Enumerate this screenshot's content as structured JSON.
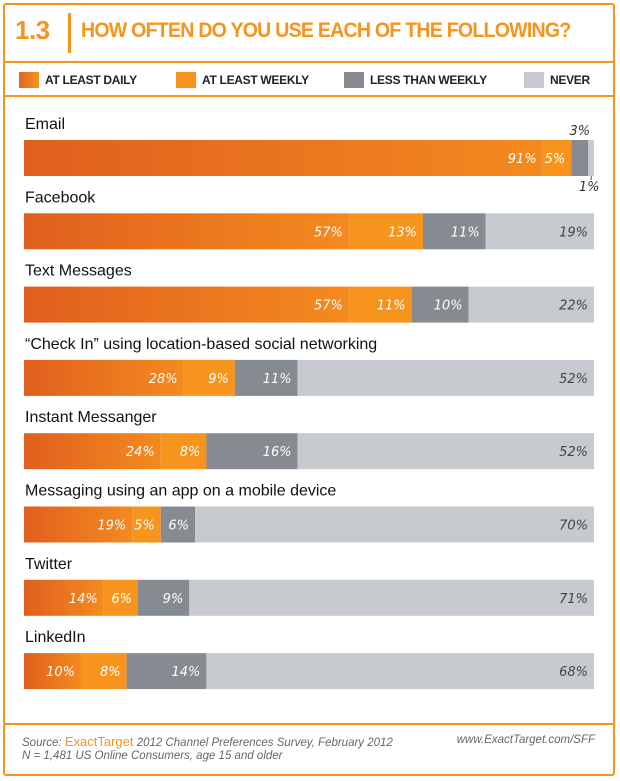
{
  "header": {
    "figure_number": "1.3",
    "title": "HOW OFTEN DO YOU USE EACH OF THE FOLLOWING?"
  },
  "legend": [
    {
      "label": "AT LEAST DAILY",
      "color": "#e8731f"
    },
    {
      "label": "AT LEAST WEEKLY",
      "color": "#f7941d"
    },
    {
      "label": "LESS THAN WEEKLY",
      "color": "#858b91"
    },
    {
      "label": "NEVER",
      "color": "#c7cbcf"
    }
  ],
  "chart_data": {
    "type": "bar",
    "orientation": "horizontal",
    "stacked": true,
    "unit": "%",
    "categories": [
      "Email",
      "Facebook",
      "Text Messages",
      "“Check In” using location-based social networking",
      "Instant Messanger",
      "Messaging using an app on a mobile device",
      "Twitter",
      "LinkedIn"
    ],
    "series": [
      {
        "name": "AT LEAST DAILY",
        "values": [
          91,
          57,
          57,
          28,
          24,
          19,
          14,
          10
        ]
      },
      {
        "name": "AT LEAST WEEKLY",
        "values": [
          5,
          13,
          11,
          9,
          8,
          5,
          6,
          8
        ]
      },
      {
        "name": "LESS THAN WEEKLY",
        "values": [
          3,
          11,
          10,
          11,
          16,
          6,
          9,
          14
        ]
      },
      {
        "name": "NEVER",
        "values": [
          1,
          19,
          22,
          52,
          52,
          70,
          71,
          68
        ]
      }
    ],
    "value_labels": [
      [
        "91%",
        "5%",
        "3%",
        "1%"
      ],
      [
        "57%",
        "13%",
        "11%",
        "19%"
      ],
      [
        "57%",
        "11%",
        "10%",
        "22%"
      ],
      [
        "28%",
        "9%",
        "11%",
        "52%"
      ],
      [
        "24%",
        "8%",
        "16%",
        "52%"
      ],
      [
        "19%",
        "5%",
        "6%",
        "70%"
      ],
      [
        "14%",
        "6%",
        "9%",
        "71%"
      ],
      [
        "10%",
        "8%",
        "14%",
        "68%"
      ]
    ],
    "colors": [
      "#e8731f",
      "#f7941d",
      "#858b91",
      "#c7cbcf"
    ],
    "xlim": [
      0,
      100
    ],
    "legend_position": "top"
  },
  "footer": {
    "source_prefix": "Source:",
    "source_brand": "ExactTarget",
    "source_rest": "2012 Channel Preferences Survey, February 2012",
    "sample": "N = 1,481  US Online Consumers, age 15 and older",
    "url": "www.ExactTarget.com/SFF"
  }
}
